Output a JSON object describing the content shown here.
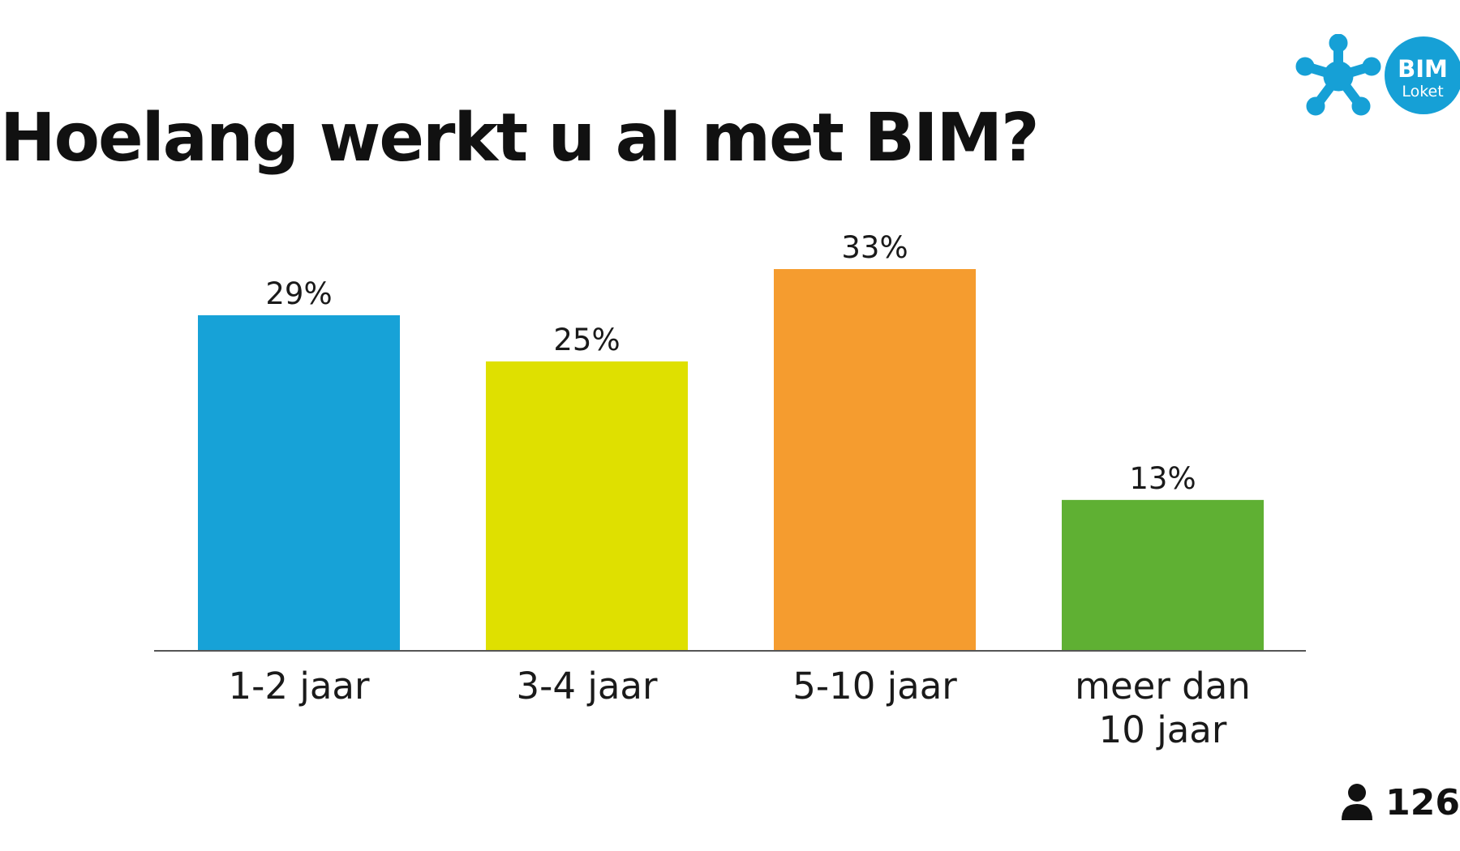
{
  "title": "Hoelang werkt u al met BIM?",
  "logo": {
    "line1": "BIM",
    "line2": "Loket",
    "color": "#16a0d6"
  },
  "respondents": {
    "icon": "person-icon",
    "count": "126"
  },
  "chart_data": {
    "type": "bar",
    "categories": [
      [
        "1-2 jaar"
      ],
      [
        "3-4 jaar"
      ],
      [
        "5-10 jaar"
      ],
      [
        "meer dan",
        "10 jaar"
      ]
    ],
    "values": [
      29,
      25,
      33,
      13
    ],
    "value_labels": [
      "29%",
      "25%",
      "33%",
      "13%"
    ],
    "colors": [
      "#17a2d7",
      "#dfe000",
      "#f59c2f",
      "#5fb033"
    ],
    "unit": "%",
    "ylim": [
      0,
      33
    ],
    "grid": false,
    "legend": "none"
  }
}
